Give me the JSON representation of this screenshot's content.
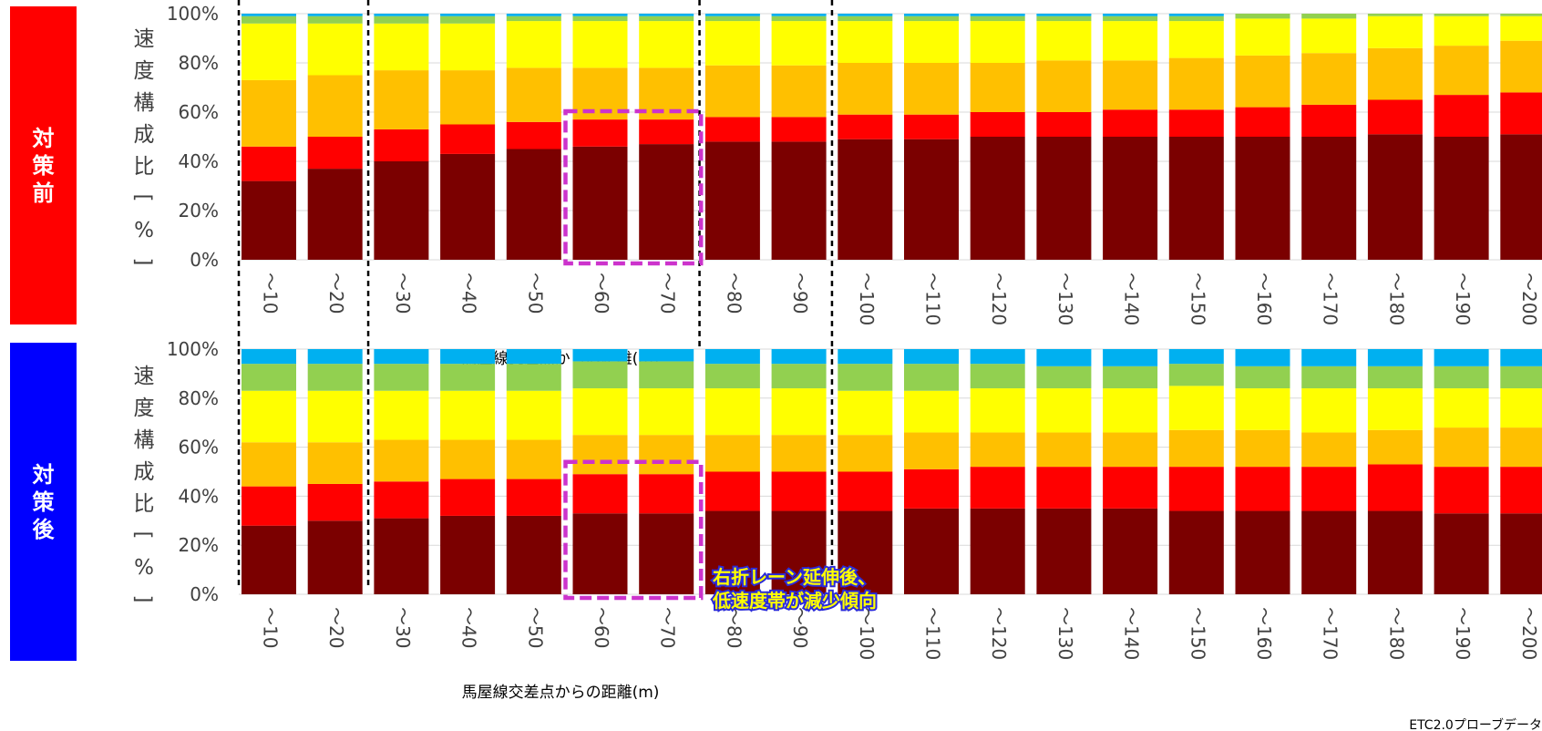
{
  "labels": {
    "before": "対策前",
    "after": "対策後"
  },
  "source": "ETC2.0プローブデータ",
  "annotation": [
    "右折レーン延伸後、",
    "低速度帯が減少傾向"
  ],
  "colors": {
    "bands": [
      "#7b0000",
      "#ff0000",
      "#ffc000",
      "#ffff00",
      "#92d050",
      "#00b0f0"
    ],
    "highlight": "#cc33cc",
    "before_label_bg": "#ff0000",
    "after_label_bg": "#0000ff"
  },
  "chart_data": [
    {
      "type": "bar",
      "stacked": true,
      "panel": "対策前",
      "ylabel": "速度構成比[%]",
      "xlabel": "馬屋線交差点からの距離(m)",
      "categories": [
        "～10",
        "～20",
        "～30",
        "～40",
        "～50",
        "～60",
        "～70",
        "～80",
        "～90",
        "～100",
        "～110",
        "～120",
        "～130",
        "～140",
        "～150",
        "～160",
        "～170",
        "～180",
        "～190",
        "～200"
      ],
      "yticks": [
        "0%",
        "20%",
        "40%",
        "60%",
        "80%",
        "100%"
      ],
      "ylim": [
        0,
        100
      ],
      "highlight_categories": [
        "～60",
        "～70"
      ],
      "separators_after": [
        "～20",
        "～70",
        "～90"
      ],
      "series": [
        {
          "color": "#7b0000",
          "values": [
            32,
            37,
            40,
            43,
            45,
            46,
            47,
            48,
            48,
            49,
            49,
            50,
            50,
            50,
            50,
            50,
            50,
            51,
            50,
            51
          ]
        },
        {
          "color": "#ff0000",
          "values": [
            14,
            13,
            13,
            12,
            11,
            11,
            10,
            10,
            10,
            10,
            10,
            10,
            10,
            11,
            11,
            12,
            13,
            14,
            17,
            17
          ]
        },
        {
          "color": "#ffc000",
          "values": [
            27,
            25,
            24,
            22,
            22,
            21,
            21,
            21,
            21,
            21,
            21,
            20,
            21,
            20,
            21,
            21,
            21,
            21,
            20,
            21
          ]
        },
        {
          "color": "#ffff00",
          "values": [
            23,
            21,
            19,
            19,
            19,
            19,
            19,
            18,
            18,
            17,
            17,
            17,
            16,
            16,
            15,
            15,
            14,
            13,
            12,
            10
          ]
        },
        {
          "color": "#92d050",
          "values": [
            3,
            3,
            3,
            3,
            2,
            2,
            2,
            2,
            2,
            2,
            2,
            2,
            2,
            2,
            2,
            2,
            2,
            1,
            1,
            1
          ]
        },
        {
          "color": "#00b0f0",
          "values": [
            1,
            1,
            1,
            1,
            1,
            1,
            1,
            1,
            1,
            1,
            1,
            1,
            1,
            1,
            1,
            0,
            0,
            0,
            0,
            0
          ]
        }
      ]
    },
    {
      "type": "bar",
      "stacked": true,
      "panel": "対策後",
      "ylabel": "速度構成比[%]",
      "xlabel": "馬屋線交差点からの距離(m)",
      "categories": [
        "～10",
        "～20",
        "～30",
        "～40",
        "～50",
        "～60",
        "～70",
        "～80",
        "～90",
        "～100",
        "～110",
        "～120",
        "～130",
        "～140",
        "～150",
        "～160",
        "～170",
        "～180",
        "～190",
        "～200"
      ],
      "yticks": [
        "0%",
        "20%",
        "40%",
        "60%",
        "80%",
        "100%"
      ],
      "ylim": [
        0,
        100
      ],
      "highlight_categories": [
        "～60",
        "～70"
      ],
      "separators_after": [
        "～20",
        "～90"
      ],
      "series": [
        {
          "color": "#7b0000",
          "values": [
            28,
            30,
            31,
            32,
            32,
            33,
            33,
            34,
            34,
            34,
            35,
            35,
            35,
            35,
            34,
            34,
            34,
            34,
            33,
            33
          ]
        },
        {
          "color": "#ff0000",
          "values": [
            16,
            15,
            15,
            15,
            15,
            16,
            16,
            16,
            16,
            16,
            16,
            17,
            17,
            17,
            18,
            18,
            18,
            19,
            19,
            19
          ]
        },
        {
          "color": "#ffc000",
          "values": [
            18,
            17,
            17,
            16,
            16,
            16,
            16,
            15,
            15,
            15,
            15,
            14,
            14,
            14,
            15,
            15,
            14,
            14,
            16,
            16
          ]
        },
        {
          "color": "#ffff00",
          "values": [
            21,
            21,
            20,
            20,
            20,
            19,
            19,
            19,
            19,
            18,
            17,
            18,
            18,
            18,
            18,
            17,
            18,
            17,
            16,
            16
          ]
        },
        {
          "color": "#92d050",
          "values": [
            11,
            11,
            11,
            11,
            11,
            11,
            11,
            10,
            10,
            11,
            11,
            10,
            9,
            9,
            9,
            9,
            9,
            9,
            9,
            9
          ]
        },
        {
          "color": "#00b0f0",
          "values": [
            6,
            6,
            6,
            6,
            6,
            5,
            5,
            6,
            6,
            6,
            6,
            6,
            7,
            7,
            6,
            7,
            7,
            7,
            7,
            7
          ]
        }
      ]
    }
  ]
}
